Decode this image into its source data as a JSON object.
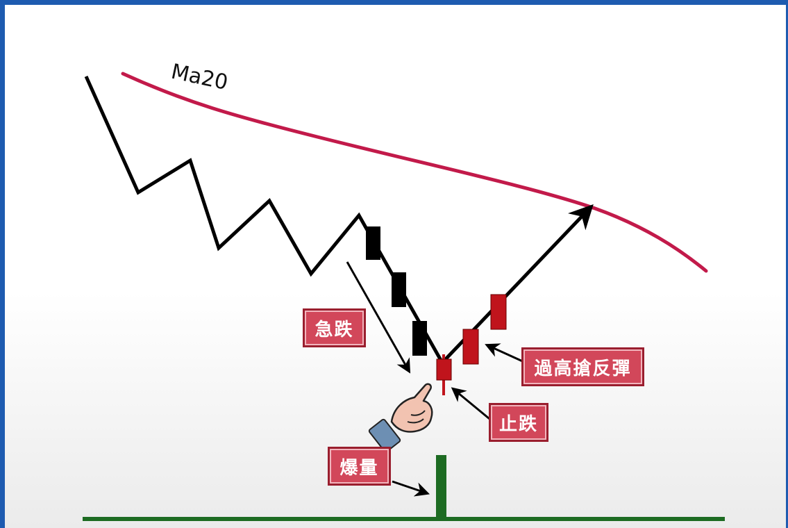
{
  "ma_label": "Ma20",
  "labels": {
    "sharp_drop": "急跌",
    "rebound": "過高搶反彈",
    "stop_fall": "止跌",
    "volume_burst": "爆量"
  },
  "colors": {
    "border": "#1e5bb0",
    "ma_line": "#c21a4a",
    "price_line": "#000000",
    "bear_candle": "#000000",
    "bull_candle": "#c0141c",
    "volume": "#1d6b22",
    "label_bg": "#d2475a",
    "label_text": "#ffffff"
  },
  "icons": [
    "pointing-hand-icon",
    "arrow-icon"
  ]
}
